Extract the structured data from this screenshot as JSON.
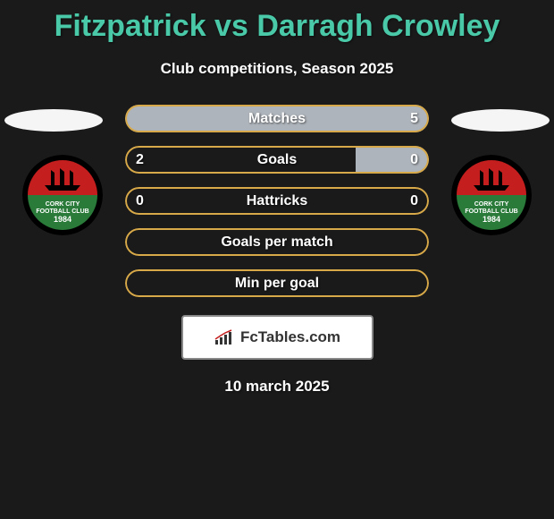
{
  "title": "Fitzpatrick vs Darragh Crowley",
  "subtitle": "Club competitions, Season 2025",
  "date": "10 march 2025",
  "site_name": "FcTables.com",
  "colors": {
    "title_color": "#4ac9a8",
    "background": "#1a1a1a",
    "bar_border": "#d8a948",
    "bar_fill_gray": "#aeb4bb",
    "badge_red": "#c41e1e",
    "badge_green": "#2a7a3a"
  },
  "team": {
    "name": "CORK CITY",
    "subtitle": "FOOTBALL CLUB",
    "year": "1984"
  },
  "stats": [
    {
      "label": "Matches",
      "left_value": "",
      "right_value": "5",
      "left_fill_pct": 0,
      "right_fill_pct": 100,
      "right_fill_color": "#aeb4bb"
    },
    {
      "label": "Goals",
      "left_value": "2",
      "right_value": "0",
      "left_fill_pct": 0,
      "right_fill_pct": 24,
      "right_fill_color": "#aeb4bb"
    },
    {
      "label": "Hattricks",
      "left_value": "0",
      "right_value": "0",
      "left_fill_pct": 0,
      "right_fill_pct": 0,
      "right_fill_color": "#aeb4bb"
    },
    {
      "label": "Goals per match",
      "left_value": "",
      "right_value": "",
      "left_fill_pct": 0,
      "right_fill_pct": 0,
      "right_fill_color": "#aeb4bb"
    },
    {
      "label": "Min per goal",
      "left_value": "",
      "right_value": "",
      "left_fill_pct": 0,
      "right_fill_pct": 0,
      "right_fill_color": "#aeb4bb"
    }
  ]
}
